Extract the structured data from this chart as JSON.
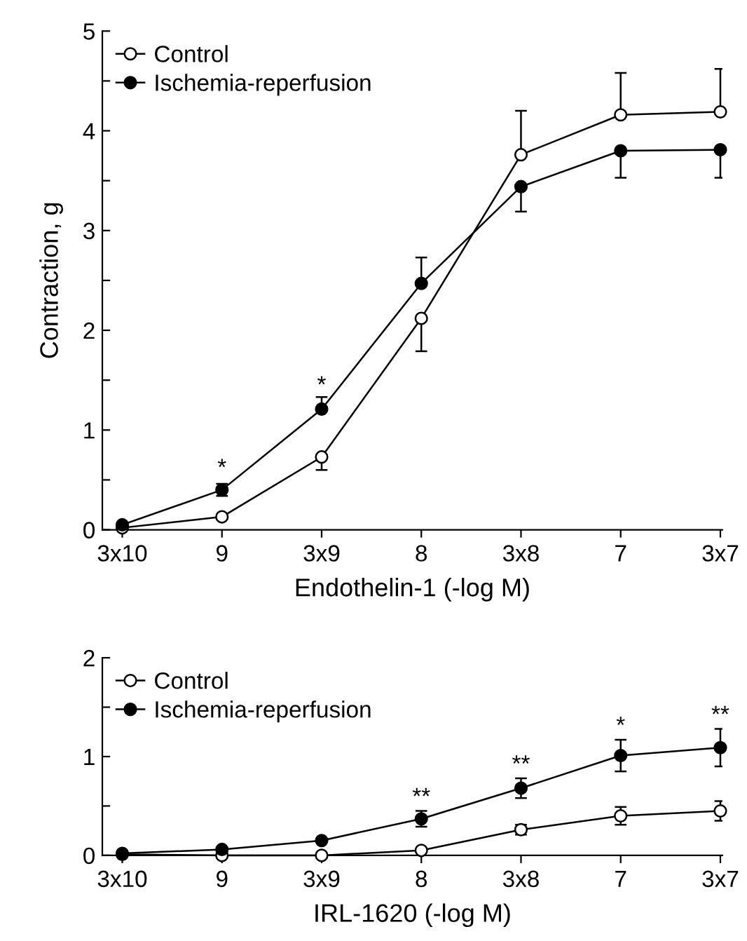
{
  "chart_data": [
    {
      "type": "line",
      "xlabel": "Endothelin-1 (-log M)",
      "ylabel": "Contraction, g",
      "categories": [
        "3x10",
        "9",
        "3x9",
        "8",
        "3x8",
        "7",
        "3x7"
      ],
      "ylim": [
        0,
        5
      ],
      "yticks": [
        0,
        {
          "value": 0.5,
          "label": null
        },
        1,
        {
          "value": 1.5,
          "label": null
        },
        2,
        {
          "value": 2.5,
          "label": null
        },
        3,
        {
          "value": 3.5,
          "label": null
        },
        4,
        {
          "value": 4.5,
          "label": null
        },
        5
      ],
      "marker": "circle",
      "line_style": "solid",
      "grid": false,
      "legend": "top left",
      "series": [
        {
          "name": "Control",
          "color": "#ffffff",
          "values": [
            0.02,
            0.13,
            0.73,
            2.12,
            3.76,
            4.16,
            4.19
          ],
          "errors": [
            null,
            null,
            [
              0.6,
              0.73
            ],
            [
              1.79,
              2.12
            ],
            [
              3.76,
              4.2
            ],
            [
              4.16,
              4.58
            ],
            [
              4.19,
              4.62
            ]
          ]
        },
        {
          "name": "Ischemia-reperfusion",
          "color": "#000000",
          "values": [
            0.05,
            0.4,
            1.21,
            2.47,
            3.44,
            3.8,
            3.81
          ],
          "errors": [
            null,
            0.06,
            [
              1.21,
              1.33
            ],
            [
              2.47,
              2.73
            ],
            [
              3.19,
              3.44
            ],
            [
              3.53,
              3.8
            ],
            [
              3.53,
              3.81
            ]
          ]
        }
      ],
      "annotations": [
        {
          "text": "*",
          "x": "9",
          "y": 0.5
        },
        {
          "text": "*",
          "x": "3x9",
          "y": 1.33
        }
      ]
    },
    {
      "type": "line",
      "xlabel": "IRL-1620 (-log M)",
      "categories": [
        "3x10",
        "9",
        "3x9",
        "8",
        "3x8",
        "7",
        "3x7"
      ],
      "ylim": [
        0,
        2
      ],
      "yticks": [
        0,
        {
          "value": 0.5,
          "label": null
        },
        1,
        {
          "value": 1.5,
          "label": null
        },
        2
      ],
      "marker": "circle",
      "line_style": "solid",
      "grid": false,
      "legend": "top left",
      "series": [
        {
          "name": "Control",
          "color": "#ffffff",
          "values": [
            0.01,
            0.0,
            0.0,
            0.05,
            0.26,
            0.4,
            0.45
          ],
          "errors": [
            null,
            null,
            null,
            null,
            0.05,
            0.09,
            0.1
          ]
        },
        {
          "name": "Ischemia-reperfusion",
          "color": "#000000",
          "values": [
            0.02,
            0.06,
            0.15,
            0.37,
            0.68,
            1.01,
            1.09
          ],
          "errors": [
            null,
            null,
            null,
            0.08,
            0.1,
            0.16,
            0.19
          ]
        }
      ],
      "annotations": [
        {
          "text": "**",
          "x": "8",
          "y": 0.47
        },
        {
          "text": "**",
          "x": "3x8",
          "y": 0.8
        },
        {
          "text": "*",
          "x": "7",
          "y": 1.19
        },
        {
          "text": "**",
          "x": "3x7",
          "y": 1.3
        }
      ]
    }
  ]
}
